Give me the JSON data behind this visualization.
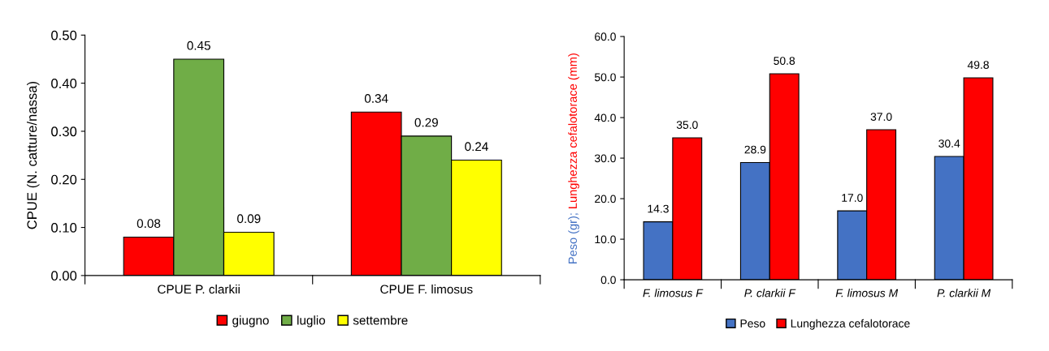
{
  "chart_data": [
    {
      "type": "bar",
      "ylabel": "CPUE (N. catture/nassa)",
      "categories": [
        "CPUE P. clarkii",
        "CPUE F. limosus"
      ],
      "series": [
        {
          "name": "giugno",
          "color": "#ff0000",
          "values": [
            0.08,
            0.34
          ],
          "value_labels": [
            "0.08",
            "0.34"
          ]
        },
        {
          "name": "luglio",
          "color": "#70ad47",
          "values": [
            0.45,
            0.29
          ],
          "value_labels": [
            "0.45",
            "0.29"
          ]
        },
        {
          "name": "settembre",
          "color": "#ffff00",
          "values": [
            0.09,
            0.24
          ],
          "value_labels": [
            "0.09",
            "0.24"
          ]
        }
      ],
      "ylim": [
        0,
        0.5
      ],
      "yticks": [
        {
          "value": 0,
          "label": "0.00"
        },
        {
          "value": 0.1,
          "label": "0.10"
        },
        {
          "value": 0.2,
          "label": "0.20"
        },
        {
          "value": 0.3,
          "label": "0.30"
        },
        {
          "value": 0.4,
          "label": "0.40"
        },
        {
          "value": 0.5,
          "label": "0.50"
        }
      ],
      "legend": "bottom",
      "grid": false
    },
    {
      "type": "bar",
      "ylabel": "Peso (gr); Lunghezza cefalotorace (mm)",
      "categories": [
        "F. limosus F",
        "P. clarkii F",
        "F. limosus M",
        "P. clarkii M"
      ],
      "series": [
        {
          "name": "Peso",
          "color": "#4472c4",
          "values": [
            14.3,
            28.9,
            17.0,
            30.4
          ],
          "value_labels": [
            "14.3",
            "28.9",
            "17.0",
            "30.4"
          ]
        },
        {
          "name": "Lunghezza cefalotorace",
          "color": "#ff0000",
          "values": [
            35.0,
            50.8,
            37.0,
            49.8
          ],
          "value_labels": [
            "35.0",
            "50.8",
            "37.0",
            "49.8"
          ]
        }
      ],
      "ylim": [
        0,
        60
      ],
      "yticks": [
        {
          "value": 0,
          "label": "0.0"
        },
        {
          "value": 10,
          "label": "10.0"
        },
        {
          "value": 20,
          "label": "20.0"
        },
        {
          "value": 30,
          "label": "30.0"
        },
        {
          "value": 40,
          "label": "40.0"
        },
        {
          "value": 50,
          "label": "50.0"
        },
        {
          "value": 60,
          "label": "60.0"
        }
      ],
      "legend": "bottom",
      "grid": false
    }
  ]
}
